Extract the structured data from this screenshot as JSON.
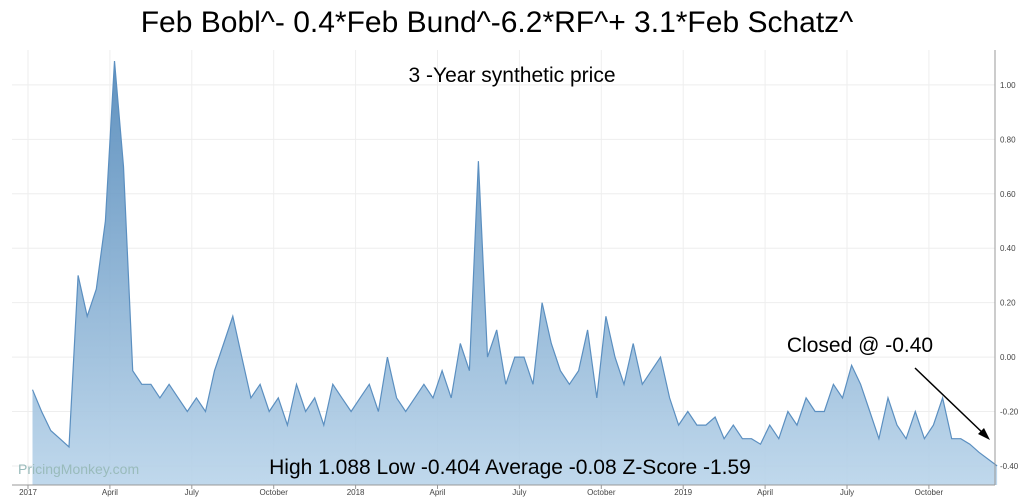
{
  "chart_data": {
    "type": "area",
    "title": "Feb Bobl^- 0.4*Feb Bund^-6.2*RF^+ 3.1*Feb Schatz^",
    "subtitle": "3 -Year synthetic price",
    "annotations": [
      "Closed @ -0.40",
      "High 1.088 Low -0.404 Average -0.08 Z-Score -1.59",
      "PricingMonkey.com"
    ],
    "x": [
      "2017-01",
      "2017-01",
      "2017-01",
      "2017-02",
      "2017-02",
      "2017-02",
      "2017-03",
      "2017-03",
      "2017-03",
      "2017-04",
      "2017-04",
      "2017-04",
      "2017-05",
      "2017-05",
      "2017-05",
      "2017-06",
      "2017-06",
      "2017-06",
      "2017-07",
      "2017-07",
      "2017-07",
      "2017-08",
      "2017-08",
      "2017-08",
      "2017-09",
      "2017-09",
      "2017-09",
      "2017-10",
      "2017-10",
      "2017-10",
      "2017-11",
      "2017-11",
      "2017-11",
      "2017-12",
      "2017-12",
      "2017-12",
      "2018-01",
      "2018-01",
      "2018-01",
      "2018-02",
      "2018-02",
      "2018-02",
      "2018-03",
      "2018-03",
      "2018-03",
      "2018-04",
      "2018-04",
      "2018-04",
      "2018-05",
      "2018-05",
      "2018-05",
      "2018-06",
      "2018-06",
      "2018-06",
      "2018-07",
      "2018-07",
      "2018-07",
      "2018-08",
      "2018-08",
      "2018-08",
      "2018-09",
      "2018-09",
      "2018-09",
      "2018-10",
      "2018-10",
      "2018-10",
      "2018-11",
      "2018-11",
      "2018-11",
      "2018-12",
      "2018-12",
      "2018-12",
      "2019-01",
      "2019-01",
      "2019-01",
      "2019-02",
      "2019-02",
      "2019-02",
      "2019-03",
      "2019-03",
      "2019-03",
      "2019-04",
      "2019-04",
      "2019-04",
      "2019-05",
      "2019-05",
      "2019-05",
      "2019-06",
      "2019-06",
      "2019-06",
      "2019-07",
      "2019-07",
      "2019-07",
      "2019-08",
      "2019-08",
      "2019-08",
      "2019-09",
      "2019-09",
      "2019-09",
      "2019-10",
      "2019-10",
      "2019-10",
      "2019-11",
      "2019-11",
      "2019-11",
      "2019-12"
    ],
    "series": [
      {
        "name": "3 -Year synthetic price",
        "color": "#5b8fc0",
        "values": [
          -0.12,
          -0.2,
          -0.27,
          -0.3,
          -0.33,
          0.3,
          0.15,
          0.25,
          0.5,
          1.088,
          0.7,
          -0.05,
          -0.1,
          -0.1,
          -0.15,
          -0.1,
          -0.15,
          -0.2,
          -0.15,
          -0.2,
          -0.05,
          0.05,
          0.15,
          0.0,
          -0.15,
          -0.1,
          -0.2,
          -0.15,
          -0.25,
          -0.1,
          -0.2,
          -0.15,
          -0.25,
          -0.1,
          -0.15,
          -0.2,
          -0.15,
          -0.1,
          -0.2,
          0.0,
          -0.15,
          -0.2,
          -0.15,
          -0.1,
          -0.15,
          -0.05,
          -0.15,
          0.05,
          -0.05,
          0.72,
          0.0,
          0.1,
          -0.1,
          0.0,
          0.0,
          -0.1,
          0.2,
          0.05,
          -0.05,
          -0.1,
          -0.05,
          0.1,
          -0.15,
          0.15,
          0.0,
          -0.1,
          0.05,
          -0.1,
          -0.05,
          0.0,
          -0.15,
          -0.25,
          -0.2,
          -0.25,
          -0.25,
          -0.22,
          -0.3,
          -0.25,
          -0.3,
          -0.3,
          -0.32,
          -0.25,
          -0.3,
          -0.2,
          -0.25,
          -0.15,
          -0.2,
          -0.2,
          -0.1,
          -0.15,
          -0.03,
          -0.1,
          -0.2,
          -0.3,
          -0.15,
          -0.25,
          -0.3,
          -0.2,
          -0.3,
          -0.25,
          -0.15,
          -0.3,
          -0.3,
          -0.32,
          -0.35,
          -0.4
        ]
      }
    ],
    "ylim": [
      -0.47,
      1.11
    ],
    "yticks": [
      {
        "value": -0.4,
        "label": "-0.40"
      },
      {
        "value": -0.2,
        "label": "-0.20"
      },
      {
        "value": 0,
        "label": "0.00"
      },
      {
        "value": 0.2,
        "label": "0.20"
      },
      {
        "value": 0.4,
        "label": "0.40"
      },
      {
        "value": 0.6,
        "label": "0.60"
      },
      {
        "value": 0.8,
        "label": "0.80"
      },
      {
        "value": 1.0,
        "label": "1.00"
      }
    ],
    "xticks": [
      {
        "value": "2017-01",
        "label": "2017"
      },
      {
        "value": "2017-04",
        "label": "April"
      },
      {
        "value": "2017-07",
        "label": "July"
      },
      {
        "value": "2017-10",
        "label": "October"
      },
      {
        "value": "2018-01",
        "label": "2018"
      },
      {
        "value": "2018-04",
        "label": "April"
      },
      {
        "value": "2018-07",
        "label": "July"
      },
      {
        "value": "2018-10",
        "label": "October"
      },
      {
        "value": "2019-01",
        "label": "2019"
      },
      {
        "value": "2019-04",
        "label": "April"
      },
      {
        "value": "2019-07",
        "label": "July"
      },
      {
        "value": "2019-10",
        "label": "October"
      }
    ],
    "grid": true
  }
}
